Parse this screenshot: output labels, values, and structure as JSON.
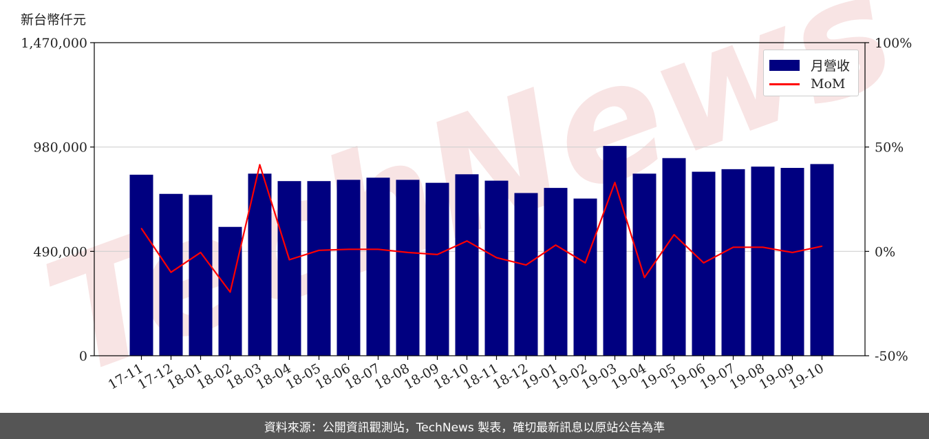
{
  "header": {
    "unit_label": "新台幣仟元"
  },
  "footer": {
    "source_text": "資料來源：公開資訊觀測站，TechNews 製表，確切最新訊息以原站公告為準"
  },
  "watermark": {
    "text": "TechNews"
  },
  "colors": {
    "bar": "#000080",
    "line": "#ff0000",
    "grid": "#d0d0d0",
    "watermark": "#f6dcdc"
  },
  "chart_data": {
    "type": "bar",
    "categories": [
      "17-11",
      "17-12",
      "18-01",
      "18-02",
      "18-03",
      "18-04",
      "18-05",
      "18-06",
      "18-07",
      "18-08",
      "18-09",
      "18-10",
      "18-11",
      "18-12",
      "19-01",
      "19-02",
      "19-03",
      "19-04",
      "19-05",
      "19-06",
      "19-07",
      "19-08",
      "19-09",
      "19-10"
    ],
    "series": [
      {
        "name": "月營收",
        "type": "bar",
        "axis": "left",
        "values": [
          850000,
          760000,
          755000,
          605000,
          855000,
          820000,
          820000,
          826000,
          836000,
          826000,
          812000,
          852000,
          822000,
          764000,
          788000,
          738000,
          985000,
          855000,
          928000,
          864000,
          876000,
          888000,
          882000,
          900000
        ]
      },
      {
        "name": "MoM",
        "type": "line",
        "axis": "right",
        "values": [
          11,
          -10,
          -0.5,
          -19.5,
          41.5,
          -4,
          0.5,
          1,
          1,
          -0.5,
          -1.5,
          5,
          -3,
          -6.5,
          3,
          -5.5,
          33,
          -12.5,
          8,
          -5.5,
          2,
          2,
          -0.5,
          2.5
        ]
      }
    ],
    "left_axis": {
      "ylim": [
        0,
        1470000
      ],
      "ticks": [
        "0",
        "490,000",
        "980,000",
        "1,470,000"
      ],
      "tick_values": [
        0,
        490000,
        980000,
        1470000
      ]
    },
    "right_axis": {
      "ylim": [
        -50,
        100
      ],
      "ticks": [
        "-50%",
        "0%",
        "50%",
        "100%"
      ],
      "tick_values": [
        -50,
        0,
        50,
        100
      ]
    },
    "grid": true,
    "legend_placement": "top-right"
  }
}
